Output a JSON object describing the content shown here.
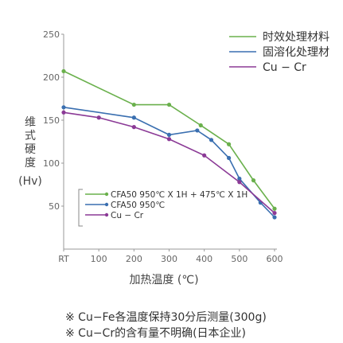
{
  "chart_data": {
    "type": "line",
    "x": [
      "RT",
      "100",
      "200",
      "300",
      "400",
      "500",
      "600"
    ],
    "x_numeric": [
      0,
      100,
      200,
      300,
      400,
      500,
      600
    ],
    "xlabel": "加热温度 (℃)",
    "ylabel": [
      "维",
      "式",
      "硬",
      "度",
      "(Hv)"
    ],
    "yticks": [
      "50",
      "100",
      "150",
      "200",
      "250"
    ],
    "ylim": [
      0,
      250
    ],
    "xlim": [
      0,
      600
    ],
    "grid": false,
    "legend_top": [
      "时效处理材料",
      "固溶化处理材",
      "Cu − Cr"
    ],
    "legend_inner": [
      "CFA50 950℃ X 1H + 475℃ X 1H",
      "CFA50 950℃",
      "Cu − Cr"
    ],
    "series": [
      {
        "name": "时效处理材料",
        "color": "#6ab04c",
        "points": [
          [
            0,
            207
          ],
          [
            200,
            168
          ],
          [
            300,
            168
          ],
          [
            390,
            144
          ],
          [
            470,
            122
          ],
          [
            540,
            80
          ],
          [
            600,
            47
          ]
        ]
      },
      {
        "name": "固溶化处理材",
        "color": "#3a6fb0",
        "points": [
          [
            0,
            165
          ],
          [
            200,
            153
          ],
          [
            300,
            133
          ],
          [
            380,
            138
          ],
          [
            420,
            127
          ],
          [
            470,
            106
          ],
          [
            500,
            82
          ],
          [
            560,
            54
          ],
          [
            600,
            37
          ]
        ]
      },
      {
        "name": "Cu − Cr",
        "color": "#8b3a96",
        "points": [
          [
            0,
            159
          ],
          [
            100,
            153
          ],
          [
            200,
            142
          ],
          [
            300,
            128
          ],
          [
            400,
            109
          ],
          [
            500,
            78
          ],
          [
            600,
            42
          ]
        ]
      }
    ]
  },
  "notes": [
    "※ Cu−Fe各温度保持30分后测量(300g)",
    "※ Cu−Cr的含有量不明确(日本企业)"
  ]
}
